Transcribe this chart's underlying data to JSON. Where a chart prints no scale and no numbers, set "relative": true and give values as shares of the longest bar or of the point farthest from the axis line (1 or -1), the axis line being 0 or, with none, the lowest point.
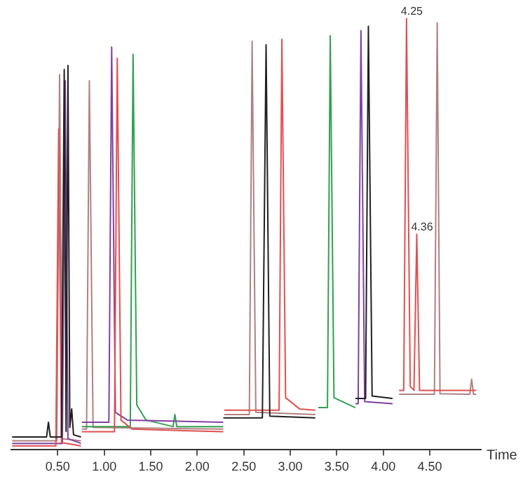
{
  "chart_data": {
    "type": "line",
    "relative": true,
    "xlabel": "Time",
    "legend": false,
    "grid": false,
    "marker": "none",
    "line_style": "solid",
    "xlim": [
      0,
      5.05
    ],
    "xticks": [
      {
        "value": 0.5,
        "label": "0.50"
      },
      {
        "value": 1,
        "label": "1.00"
      },
      {
        "value": 1.5,
        "label": "1.50"
      },
      {
        "value": 2,
        "label": "2.00"
      },
      {
        "value": 2.5,
        "label": "2.50"
      },
      {
        "value": 3,
        "label": "3.00"
      },
      {
        "value": 3.5,
        "label": "3.50"
      },
      {
        "value": 4,
        "label": "4.00"
      },
      {
        "value": 4.5,
        "label": "4.50"
      }
    ],
    "annotations": [
      {
        "text": "4.25",
        "x": 4.25,
        "y": 1
      },
      {
        "text": "4.36",
        "x": 4.36,
        "y": 0.5
      }
    ],
    "series": [
      {
        "color": "#202020",
        "x": [
          0.01,
          0.38,
          0.4,
          0.42,
          0.54,
          0.57,
          0.59,
          0.61,
          0.63,
          0.65,
          0.67,
          0.75,
          0.76,
          2.28,
          2.7,
          2.74,
          2.78,
          3.27,
          3.28,
          3.7,
          3.81,
          3.84,
          3.88,
          4.1
        ],
        "values": [
          0.03,
          0.03,
          0.064,
          0.03,
          0.03,
          0.882,
          0.043,
          0.891,
          0.052,
          0.095,
          0.035,
          0.03,
          null,
          0.074,
          0.074,
          0.939,
          0.078,
          0.074,
          null,
          0.119,
          0.119,
          0.982,
          0.125,
          0.119
        ]
      },
      {
        "color": "#e05050",
        "x": [
          0.01,
          0.48,
          0.51,
          0.54,
          0.75,
          0.755,
          0.76,
          1.11,
          1.14,
          1.18,
          1.3,
          2.28,
          2.285,
          2.29,
          2.88,
          2.91,
          2.95,
          3.1,
          3.27,
          3.28,
          4.17,
          4.22,
          4.25,
          4.29,
          4.33,
          4.36,
          4.39,
          5.0
        ],
        "values": [
          0.009,
          0.009,
          0.744,
          0.017,
          0.009,
          null,
          0.042,
          0.042,
          0.908,
          0.069,
          0.048,
          0.042,
          null,
          0.092,
          0.092,
          0.952,
          0.121,
          0.095,
          0.092,
          null,
          0.138,
          0.138,
          1,
          0.147,
          0.138,
          0.5,
          0.138,
          0.138
        ]
      },
      {
        "color": "#8040a0",
        "x": [
          0.01,
          0.55,
          0.58,
          0.61,
          0.75,
          0.755,
          0.76,
          1.05,
          1.08,
          1.12,
          1.25,
          2.28,
          2.29,
          3.7,
          3.73,
          3.76,
          3.8,
          4.1
        ],
        "values": [
          0.015,
          0.015,
          0.856,
          0.026,
          0.015,
          null,
          0.064,
          0.064,
          0.934,
          0.087,
          0.069,
          0.064,
          null,
          0.107,
          0.107,
          0.972,
          0.112,
          0.107
        ]
      },
      {
        "color": "#30a050",
        "x": [
          0.76,
          1.28,
          1.31,
          1.35,
          1.45,
          1.74,
          1.76,
          1.78,
          2.28,
          2.29,
          3.3,
          3.4,
          3.43,
          3.47,
          3.7
        ],
        "values": [
          0.054,
          0.054,
          0.917,
          0.104,
          0.069,
          0.054,
          0.082,
          0.054,
          0.054,
          null,
          0.098,
          0.098,
          0.96,
          0.121,
          0.098
        ]
      },
      {
        "color": "#b08080",
        "x": [
          0.01,
          0.49,
          0.52,
          0.55,
          0.75,
          0.755,
          0.76,
          0.81,
          0.84,
          0.88,
          2.28,
          2.285,
          2.29,
          2.56,
          2.59,
          2.63,
          3.27,
          3.28,
          4.17,
          4.55,
          4.58,
          4.61,
          4.93,
          4.95,
          4.97,
          5.0
        ],
        "values": [
          0.021,
          0.021,
          0.87,
          0.026,
          0.021,
          null,
          0.048,
          0.048,
          0.856,
          0.052,
          0.048,
          null,
          0.082,
          0.082,
          0.947,
          0.087,
          0.082,
          null,
          0.129,
          0.129,
          0.99,
          0.13,
          0.129,
          0.164,
          0.129,
          0.129
        ]
      }
    ]
  }
}
